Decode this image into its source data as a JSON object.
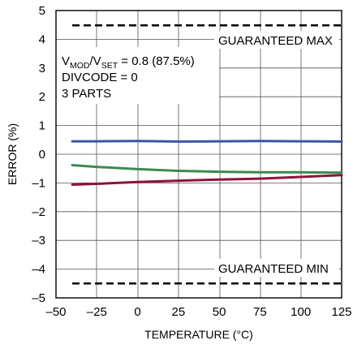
{
  "chart_data": {
    "type": "line",
    "xlabel": "TEMPERATURE (°C)",
    "ylabel": "ERROR (%)",
    "xlim": [
      -50,
      125
    ],
    "ylim": [
      -5,
      5
    ],
    "x_ticks": [
      -50,
      -25,
      0,
      25,
      50,
      75,
      100,
      125
    ],
    "x_tick_labels": [
      "–50",
      "–25",
      "0",
      "25",
      "50",
      "75",
      "100",
      "125"
    ],
    "y_ticks": [
      -5,
      -4,
      -3,
      -2,
      -1,
      0,
      1,
      2,
      3,
      4,
      5
    ],
    "y_tick_labels": [
      "–5",
      "–4",
      "–3",
      "–2",
      "–1",
      "0",
      "1",
      "2",
      "3",
      "4",
      "5"
    ],
    "grid": true,
    "limits": [
      {
        "label": "GUARANTEED MAX",
        "y": 4.5
      },
      {
        "label": "GUARANTEED MIN",
        "y": -4.5
      }
    ],
    "conditions": {
      "vmod_prefix": "V",
      "vmod_sub": "MOD",
      "vset_prefix": "/V",
      "vset_sub": "SET",
      "ratio_text": " = 0.8 (87.5%)",
      "divcode": "DIVCODE = 0",
      "parts": "3 PARTS"
    },
    "series": [
      {
        "color": "#3A55A4",
        "x": [
          -40,
          -25,
          0,
          25,
          50,
          75,
          100,
          125
        ],
        "y": [
          0.45,
          0.45,
          0.46,
          0.44,
          0.45,
          0.46,
          0.45,
          0.44
        ]
      },
      {
        "color": "#3D8A4F",
        "x": [
          -40,
          -25,
          0,
          25,
          50,
          75,
          100,
          125
        ],
        "y": [
          -0.38,
          -0.44,
          -0.52,
          -0.58,
          -0.61,
          -0.63,
          -0.63,
          -0.64
        ]
      },
      {
        "color": "#8B1538",
        "x": [
          -40,
          -25,
          0,
          25,
          50,
          75,
          100,
          125
        ],
        "y": [
          -1.06,
          -1.03,
          -0.97,
          -0.92,
          -0.88,
          -0.85,
          -0.79,
          -0.73
        ]
      }
    ]
  }
}
